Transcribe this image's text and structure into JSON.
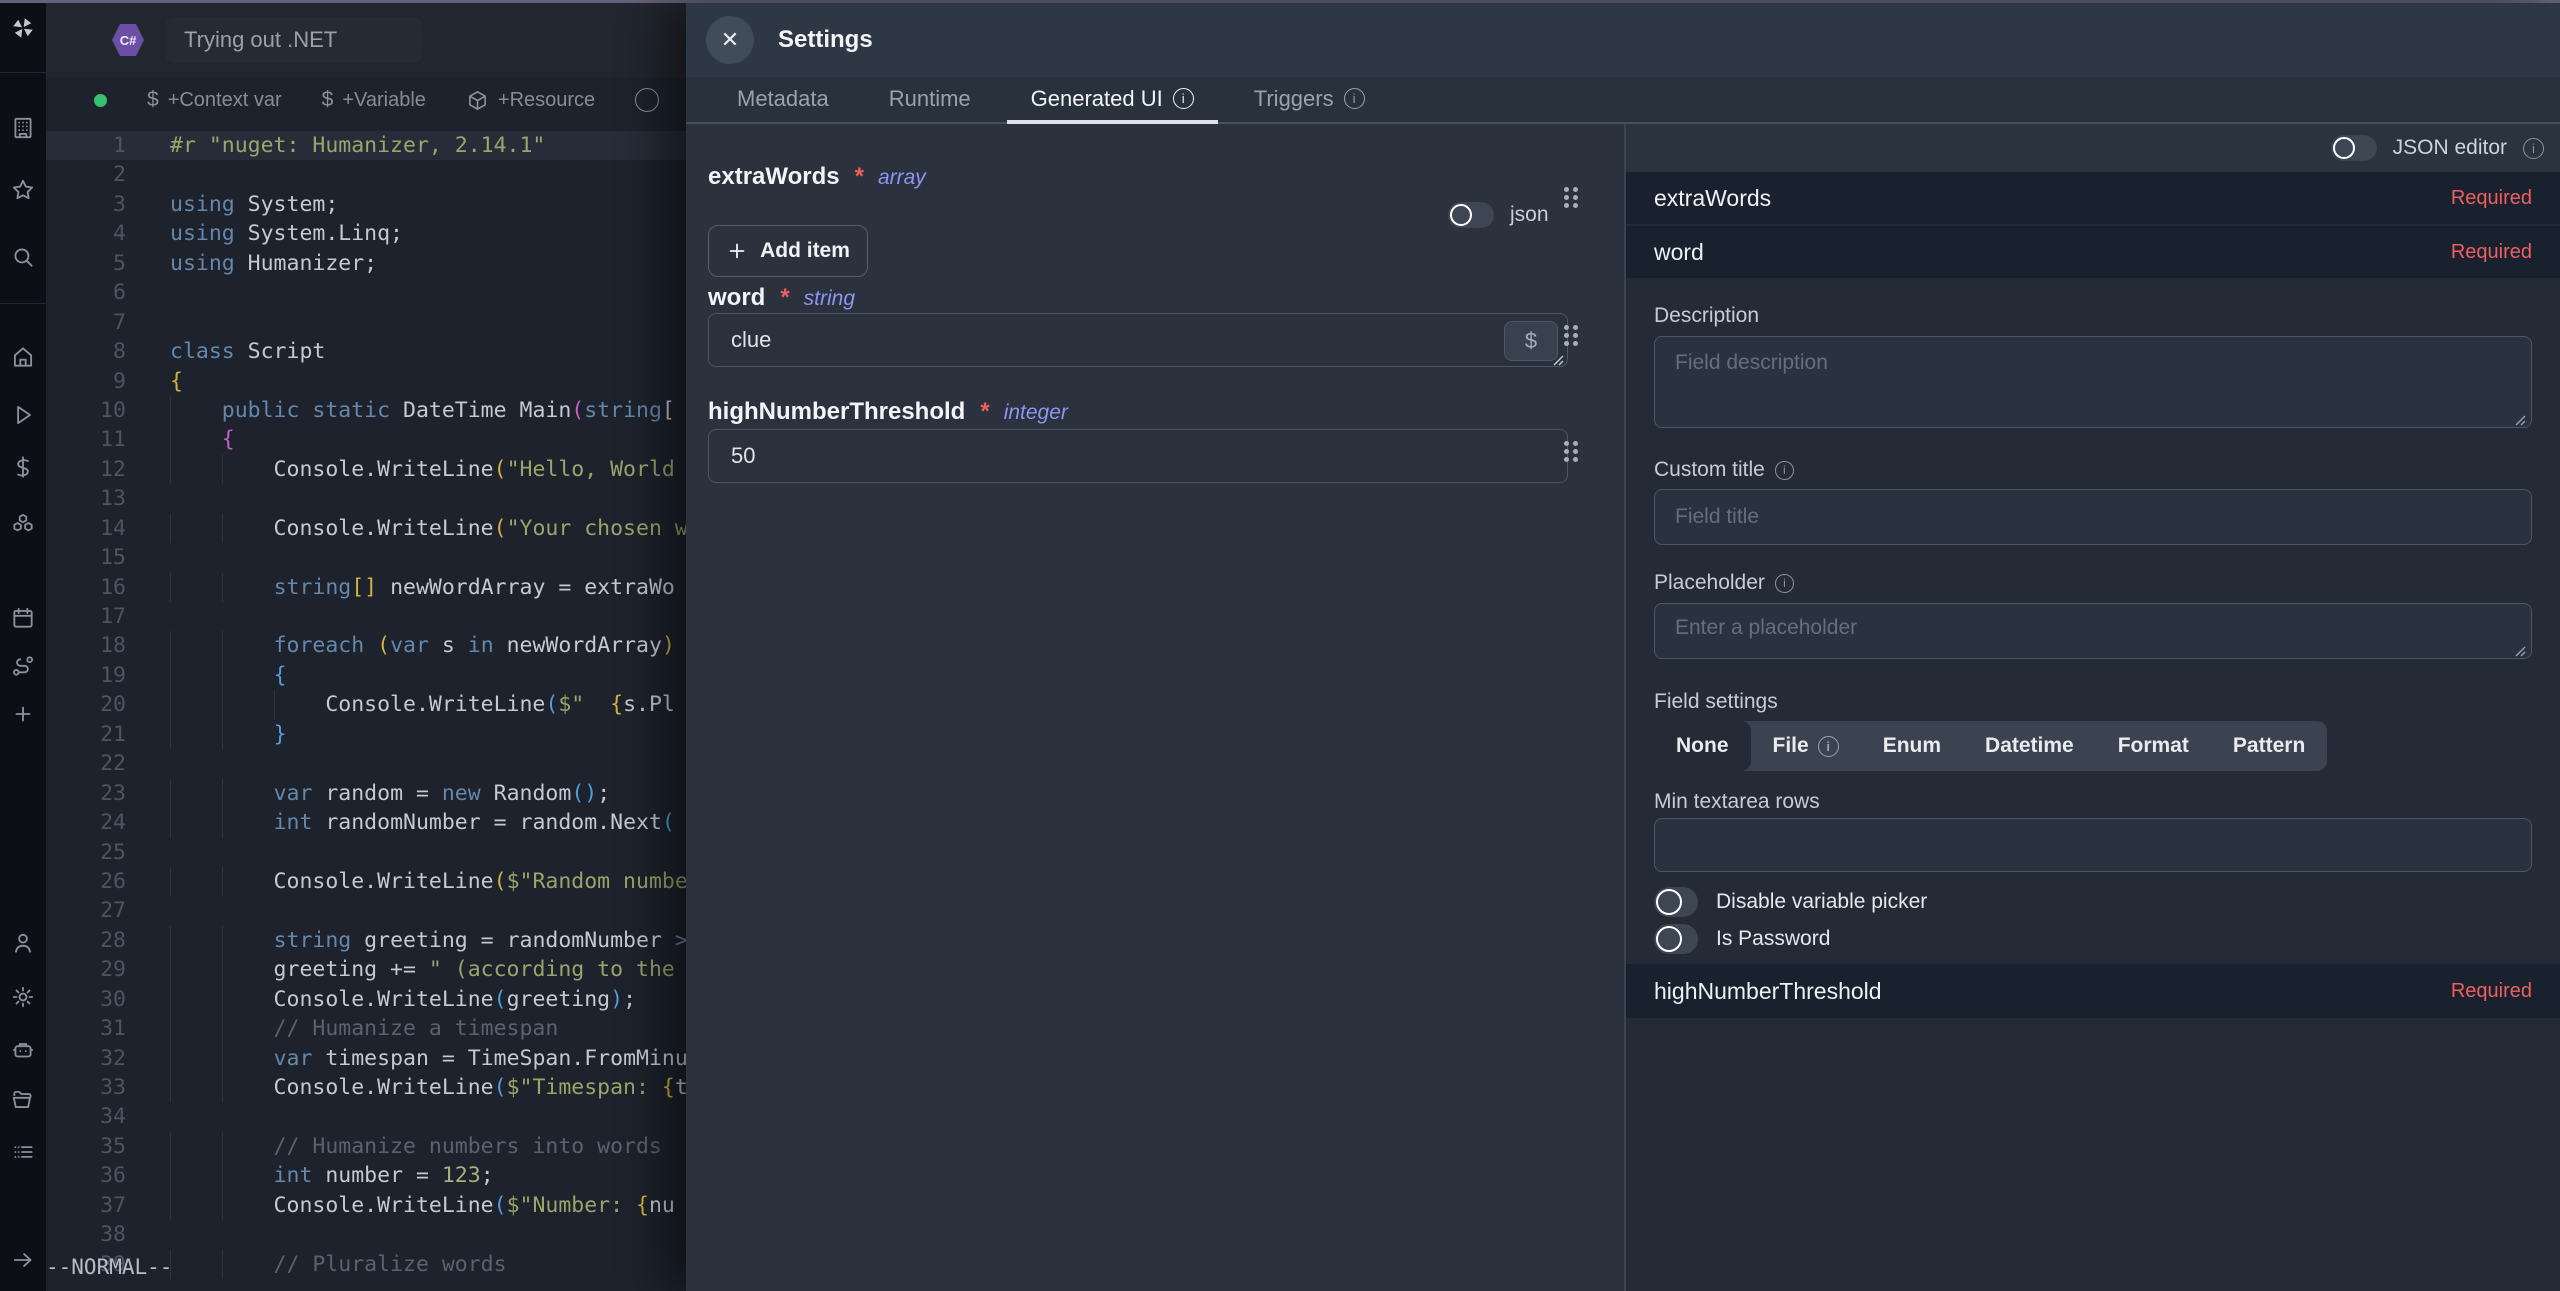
{
  "topbar": {
    "title": "Trying out .NET",
    "language_icon": "csharp-logo"
  },
  "sidebar": {
    "items": [
      "workspace-building",
      "favorites-star",
      "search",
      "home",
      "runs-play",
      "variables-dollar",
      "resources-boxes",
      "schedules-calendar",
      "flows-route",
      "add-plus",
      "account-user",
      "settings-gear",
      "workers-robot",
      "folders",
      "audit-logs-list",
      "collapse-arrow-right"
    ]
  },
  "toolbar": {
    "status_dot_color": "#34c26e",
    "items": [
      {
        "icon": "dollar-icon",
        "label": "+Context var"
      },
      {
        "icon": "dollar-icon",
        "label": "+Variable"
      },
      {
        "icon": "package-icon",
        "label": "+Resource"
      }
    ]
  },
  "editor": {
    "mode_indicator": "--NORMAL--",
    "lines": [
      {
        "n": 1,
        "hl": true,
        "t": [
          [
            "s",
            "#r \"nuget: Humanizer, 2.14.1\""
          ]
        ]
      },
      {
        "n": 2,
        "t": []
      },
      {
        "n": 3,
        "t": [
          [
            "k",
            "using "
          ],
          [
            "p",
            "System;"
          ]
        ]
      },
      {
        "n": 4,
        "t": [
          [
            "k",
            "using "
          ],
          [
            "p",
            "System.Linq;"
          ]
        ]
      },
      {
        "n": 5,
        "t": [
          [
            "k",
            "using "
          ],
          [
            "p",
            "Humanizer;"
          ]
        ]
      },
      {
        "n": 6,
        "t": []
      },
      {
        "n": 7,
        "t": []
      },
      {
        "n": 8,
        "t": [
          [
            "k",
            "class "
          ],
          [
            "p",
            "Script"
          ]
        ]
      },
      {
        "n": 9,
        "t": [
          [
            "y",
            "{"
          ]
        ]
      },
      {
        "n": 10,
        "t": [
          [
            "p",
            "    "
          ],
          [
            "k",
            "public static "
          ],
          [
            "p",
            "DateTime Main"
          ],
          [
            "m",
            "("
          ],
          [
            "k",
            "string"
          ],
          [
            "p",
            "["
          ]
        ]
      },
      {
        "n": 11,
        "t": [
          [
            "p",
            "    "
          ],
          [
            "m",
            "{"
          ]
        ]
      },
      {
        "n": 12,
        "t": [
          [
            "p",
            "        Console.WriteLine"
          ],
          [
            "y",
            "("
          ],
          [
            "s",
            "\"Hello, World"
          ]
        ]
      },
      {
        "n": 13,
        "t": []
      },
      {
        "n": 14,
        "t": [
          [
            "p",
            "        Console.WriteLine"
          ],
          [
            "y",
            "("
          ],
          [
            "s",
            "\"Your chosen w"
          ]
        ]
      },
      {
        "n": 15,
        "t": []
      },
      {
        "n": 16,
        "t": [
          [
            "p",
            "        "
          ],
          [
            "k",
            "string"
          ],
          [
            "y",
            "[]"
          ],
          [
            "p",
            " newWordArray = extraWo"
          ]
        ]
      },
      {
        "n": 17,
        "t": []
      },
      {
        "n": 18,
        "t": [
          [
            "p",
            "        "
          ],
          [
            "k",
            "foreach "
          ],
          [
            "y",
            "("
          ],
          [
            "k",
            "var"
          ],
          [
            "p",
            " s "
          ],
          [
            "k",
            "in"
          ],
          [
            "p",
            " newWordArray"
          ],
          [
            "y",
            ")"
          ]
        ]
      },
      {
        "n": 19,
        "t": [
          [
            "p",
            "        "
          ],
          [
            "b",
            "{"
          ]
        ]
      },
      {
        "n": 20,
        "t": [
          [
            "p",
            "            Console.WriteLine"
          ],
          [
            "b",
            "("
          ],
          [
            "s",
            "$\"  "
          ],
          [
            "y",
            "{"
          ],
          [
            "p",
            "s.Pl"
          ]
        ]
      },
      {
        "n": 21,
        "t": [
          [
            "p",
            "        "
          ],
          [
            "b",
            "}"
          ]
        ]
      },
      {
        "n": 22,
        "t": []
      },
      {
        "n": 23,
        "t": [
          [
            "p",
            "        "
          ],
          [
            "k",
            "var"
          ],
          [
            "p",
            " random = "
          ],
          [
            "k",
            "new"
          ],
          [
            "p",
            " Random"
          ],
          [
            "b",
            "()"
          ],
          [
            "p",
            ";"
          ]
        ]
      },
      {
        "n": 24,
        "t": [
          [
            "p",
            "        "
          ],
          [
            "k",
            "int"
          ],
          [
            "p",
            " randomNumber = random.Next"
          ],
          [
            "b",
            "("
          ]
        ]
      },
      {
        "n": 25,
        "t": []
      },
      {
        "n": 26,
        "t": [
          [
            "p",
            "        Console.WriteLine"
          ],
          [
            "y",
            "("
          ],
          [
            "s",
            "$\"Random numbe"
          ]
        ]
      },
      {
        "n": 27,
        "t": []
      },
      {
        "n": 28,
        "t": [
          [
            "p",
            "        "
          ],
          [
            "k",
            "string"
          ],
          [
            "p",
            " greeting = randomNumber "
          ],
          [
            "k",
            ">"
          ]
        ]
      },
      {
        "n": 29,
        "t": [
          [
            "p",
            "        greeting += "
          ],
          [
            "s",
            "\" (according to the"
          ]
        ]
      },
      {
        "n": 30,
        "t": [
          [
            "p",
            "        Console.WriteLine"
          ],
          [
            "b",
            "("
          ],
          [
            "p",
            "greeting"
          ],
          [
            "b",
            ")"
          ],
          [
            "p",
            ";"
          ]
        ]
      },
      {
        "n": 31,
        "t": [
          [
            "c",
            "        // Humanize a timespan"
          ]
        ]
      },
      {
        "n": 32,
        "t": [
          [
            "p",
            "        "
          ],
          [
            "k",
            "var"
          ],
          [
            "p",
            " timespan = TimeSpan.FromMinu"
          ]
        ]
      },
      {
        "n": 33,
        "t": [
          [
            "p",
            "        Console.WriteLine"
          ],
          [
            "b",
            "("
          ],
          [
            "s",
            "$\"Timespan: "
          ],
          [
            "y",
            "{"
          ],
          [
            "p",
            "t"
          ]
        ]
      },
      {
        "n": 34,
        "t": []
      },
      {
        "n": 35,
        "t": [
          [
            "c",
            "        // Humanize numbers into words"
          ]
        ]
      },
      {
        "n": 36,
        "t": [
          [
            "p",
            "        "
          ],
          [
            "k",
            "int"
          ],
          [
            "p",
            " number = "
          ],
          [
            "nm",
            "123"
          ],
          [
            "p",
            ";"
          ]
        ]
      },
      {
        "n": 37,
        "t": [
          [
            "p",
            "        Console.WriteLine"
          ],
          [
            "b",
            "("
          ],
          [
            "s",
            "$\"Number: "
          ],
          [
            "y",
            "{"
          ],
          [
            "p",
            "nu"
          ]
        ]
      },
      {
        "n": 38,
        "t": []
      },
      {
        "n": 39,
        "t": [
          [
            "c",
            "        // Pluralize words"
          ]
        ]
      }
    ]
  },
  "settings": {
    "title": "Settings",
    "tabs": [
      {
        "label": "Metadata",
        "info": false,
        "active": false
      },
      {
        "label": "Runtime",
        "info": false,
        "active": false
      },
      {
        "label": "Generated UI",
        "info": true,
        "active": true
      },
      {
        "label": "Triggers",
        "info": true,
        "active": false
      }
    ],
    "generated_ui": {
      "fields": [
        {
          "name": "extraWords",
          "required": true,
          "type": "array",
          "add_button": "Add item",
          "json_toggle_label": "json",
          "json_toggle_on": false
        },
        {
          "name": "word",
          "required": true,
          "type": "string",
          "value": "clue",
          "variable_button": "$"
        },
        {
          "name": "highNumberThreshold",
          "required": true,
          "type": "integer",
          "value": "50"
        }
      ]
    },
    "inspector": {
      "json_editor": {
        "label": "JSON editor",
        "on": false
      },
      "required_label": "Required",
      "rows": [
        {
          "name": "extraWords"
        },
        {
          "name": "word"
        },
        {
          "name": "highNumberThreshold"
        }
      ],
      "form": {
        "description_label": "Description",
        "description_placeholder": "Field description",
        "custom_title_label": "Custom title",
        "custom_title_placeholder": "Field title",
        "placeholder_label": "Placeholder",
        "placeholder_placeholder": "Enter a placeholder",
        "field_settings_label": "Field settings",
        "segments": [
          {
            "label": "None",
            "active": true,
            "info": false
          },
          {
            "label": "File",
            "active": false,
            "info": true
          },
          {
            "label": "Enum",
            "active": false,
            "info": false
          },
          {
            "label": "Datetime",
            "active": false,
            "info": false
          },
          {
            "label": "Format",
            "active": false,
            "info": false
          },
          {
            "label": "Pattern",
            "active": false,
            "info": false
          }
        ],
        "min_rows_label": "Min textarea rows",
        "toggles": [
          {
            "label": "Disable variable picker",
            "on": false
          },
          {
            "label": "Is Password",
            "on": false
          }
        ]
      }
    }
  },
  "colors": {
    "top_accent": "#66617a",
    "indigo_type": "#8d95f2",
    "required_red": "#ee5f5f",
    "status_green": "#34c26e"
  }
}
